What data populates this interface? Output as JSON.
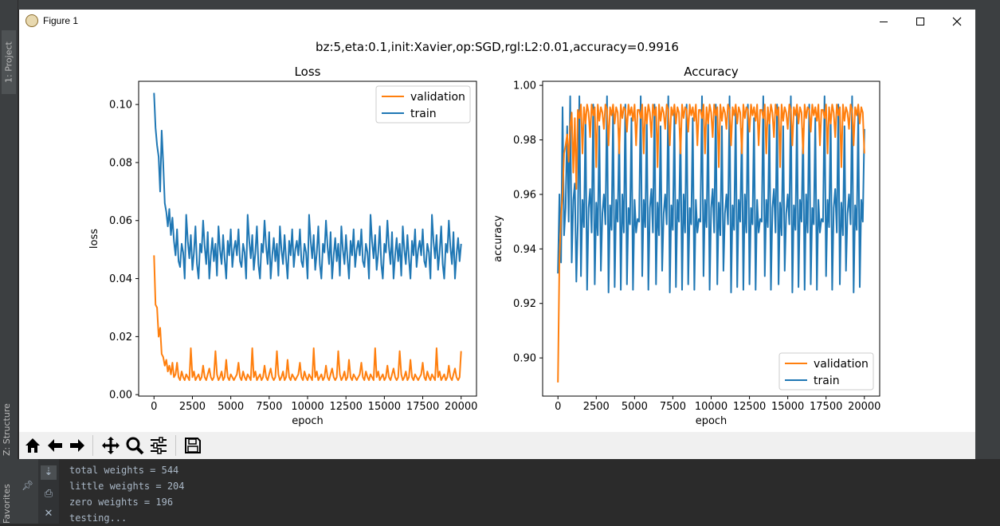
{
  "ide": {
    "left_tabs": [
      "1: Project",
      "Z: Structure",
      "Favorites"
    ],
    "console_lines": [
      "total weights = 544",
      "little weights = 204",
      "zero weights = 196",
      "testing..."
    ]
  },
  "window": {
    "title": "Figure 1",
    "controls": [
      "minimize",
      "maximize",
      "close"
    ]
  },
  "figure": {
    "suptitle": "bz:5,eta:0.1,init:Xavier,op:SGD,rgl:L2:0.01,accuracy=0.9916"
  },
  "toolbar": {
    "buttons": [
      "home-icon",
      "back-arrow-icon",
      "forward-arrow-icon",
      "pan-icon",
      "zoom-icon",
      "configure-subplots-icon",
      "save-icon"
    ]
  },
  "colors": {
    "validation": "#ff7f0e",
    "train": "#1f77b4"
  },
  "chart_data": [
    {
      "type": "line",
      "title": "Loss",
      "xlabel": "epoch",
      "ylabel": "loss",
      "xlim": [
        -1000,
        21000
      ],
      "ylim": [
        -0.0005,
        0.108
      ],
      "xticks": [
        0,
        2500,
        5000,
        7500,
        10000,
        12500,
        15000,
        17500,
        20000
      ],
      "yticks": [
        0.0,
        0.02,
        0.04,
        0.06,
        0.08,
        0.1
      ],
      "ytick_labels": [
        "0.00",
        "0.02",
        "0.04",
        "0.06",
        "0.08",
        "0.10"
      ],
      "legend_loc": "upper right",
      "series": [
        {
          "name": "validation",
          "color": "#ff7f0e",
          "start": 0.048,
          "early": [
            0.031,
            0.03,
            0.02,
            0.023,
            0.014,
            0.013,
            0.01,
            0.012,
            0.008,
            0.01,
            0.007,
            0.011
          ],
          "pattern": [
            0.006,
            0.007,
            0.011,
            0.006,
            0.005,
            0.008,
            0.006,
            0.005,
            0.007,
            0.006,
            0.005,
            0.016,
            0.006,
            0.008,
            0.005,
            0.006,
            0.007,
            0.005,
            0.006,
            0.01,
            0.006,
            0.005,
            0.007,
            0.009,
            0.006,
            0.005,
            0.006,
            0.015,
            0.007,
            0.005,
            0.006,
            0.008,
            0.005,
            0.006,
            0.012,
            0.006,
            0.005,
            0.007,
            0.006,
            0.005
          ]
        },
        {
          "name": "train",
          "color": "#1f77b4",
          "start": 0.104,
          "early": [
            0.092,
            0.086,
            0.082,
            0.07,
            0.091,
            0.08,
            0.066,
            0.063,
            0.058,
            0.064,
            0.055,
            0.061
          ],
          "pattern": [
            0.053,
            0.048,
            0.057,
            0.046,
            0.044,
            0.052,
            0.049,
            0.04,
            0.062,
            0.053,
            0.047,
            0.055,
            0.043,
            0.049,
            0.058,
            0.045,
            0.04,
            0.052,
            0.049,
            0.06,
            0.051,
            0.045,
            0.056,
            0.04,
            0.048,
            0.054,
            0.046,
            0.052,
            0.041,
            0.058,
            0.05,
            0.045,
            0.055,
            0.047,
            0.04,
            0.053,
            0.048,
            0.057,
            0.044,
            0.05
          ]
        }
      ]
    },
    {
      "type": "line",
      "title": "Accuracy",
      "xlabel": "epoch",
      "ylabel": "accuracy",
      "xlim": [
        -1000,
        21000
      ],
      "ylim": [
        0.886,
        1.0015
      ],
      "xticks": [
        0,
        2500,
        5000,
        7500,
        10000,
        12500,
        15000,
        17500,
        20000
      ],
      "yticks": [
        0.9,
        0.92,
        0.94,
        0.96,
        0.98,
        1.0
      ],
      "ytick_labels": [
        "0.90",
        "0.92",
        "0.94",
        "0.96",
        "0.98",
        "1.00"
      ],
      "legend_loc": "lower right",
      "series": [
        {
          "name": "validation",
          "color": "#ff7f0e",
          "start": 0.891,
          "early": [
            0.936,
            0.952,
            0.96,
            0.975,
            0.978,
            0.982,
            0.972,
            0.985,
            0.99,
            0.968,
            0.988,
            0.962
          ],
          "pattern": [
            0.991,
            0.988,
            0.993,
            0.975,
            0.992,
            0.986,
            0.993,
            0.99,
            0.981,
            0.993,
            0.989,
            0.992,
            0.97,
            0.993,
            0.987,
            0.992,
            0.99,
            0.984,
            0.993,
            0.991,
            0.978,
            0.992,
            0.989,
            0.993,
            0.986,
            0.992,
            0.99,
            0.975,
            0.993,
            0.988,
            0.992,
            0.991,
            0.983,
            0.993,
            0.989,
            0.992,
            0.987,
            0.993,
            0.978,
            0.991
          ]
        },
        {
          "name": "train",
          "color": "#1f77b4",
          "start": 0.931,
          "early": [
            0.96,
            0.935,
            0.992,
            0.945,
            0.955,
            0.985,
            0.95,
            0.996,
            0.935,
            0.958,
            0.964,
            0.928
          ],
          "pattern": [
            0.95,
            0.996,
            0.93,
            0.958,
            0.948,
            0.988,
            0.925,
            0.955,
            0.962,
            0.946,
            0.993,
            0.927,
            0.957,
            0.945,
            0.985,
            0.932,
            0.953,
            0.96,
            0.949,
            0.996,
            0.924,
            0.956,
            0.947,
            0.99,
            0.926,
            0.958,
            0.95,
            0.984,
            0.925,
            0.96,
            0.946,
            0.993,
            0.927,
            0.955,
            0.949,
            0.988,
            0.925,
            0.958,
            0.946,
            0.951
          ]
        }
      ]
    }
  ]
}
